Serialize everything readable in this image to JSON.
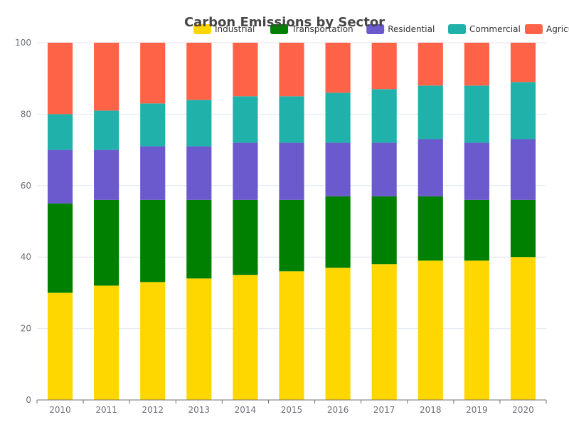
{
  "chart_data": {
    "type": "bar",
    "stacked": true,
    "title": "Carbon Emissions by Sector",
    "xlabel": "",
    "ylabel": "",
    "ylim": [
      0,
      100
    ],
    "yticks": [
      0,
      20,
      40,
      60,
      80,
      100
    ],
    "grid": true,
    "legend_position": "top",
    "categories": [
      "2010",
      "2011",
      "2012",
      "2013",
      "2014",
      "2015",
      "2016",
      "2017",
      "2018",
      "2019",
      "2020"
    ],
    "series": [
      {
        "name": "Industrial",
        "color": "#FFD700",
        "values": [
          30,
          32,
          33,
          34,
          35,
          36,
          37,
          38,
          39,
          39,
          40
        ]
      },
      {
        "name": "Transportation",
        "color": "#008000",
        "values": [
          25,
          24,
          23,
          22,
          21,
          20,
          20,
          19,
          18,
          17,
          16
        ]
      },
      {
        "name": "Residential",
        "color": "#6A5ACD",
        "values": [
          15,
          14,
          15,
          15,
          16,
          16,
          15,
          15,
          16,
          16,
          17
        ]
      },
      {
        "name": "Commercial",
        "color": "#20B2AA",
        "values": [
          10,
          11,
          12,
          13,
          13,
          13,
          14,
          15,
          15,
          16,
          16
        ]
      },
      {
        "name": "Agriculture",
        "color": "#FF6347",
        "values": [
          20,
          19,
          17,
          16,
          15,
          15,
          14,
          13,
          12,
          12,
          11
        ]
      }
    ]
  }
}
